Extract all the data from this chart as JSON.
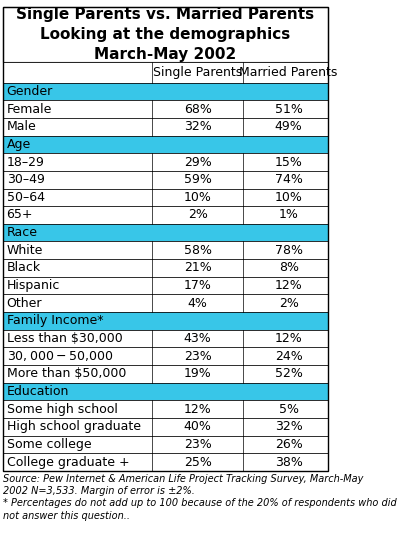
{
  "title": "Single Parents vs. Married Parents\nLooking at the demographics\nMarch-May 2002",
  "col_headers": [
    "",
    "Single Parents",
    "Married Parents"
  ],
  "header_bg": "#00BFFF",
  "section_bg": "#00BFFF",
  "row_bg_odd": "#FFFFFF",
  "row_bg_even": "#FFFFFF",
  "outer_border": "#000000",
  "sections": [
    {
      "name": "Gender",
      "rows": [
        [
          "Female",
          "68%",
          "51%"
        ],
        [
          "Male",
          "32%",
          "49%"
        ]
      ]
    },
    {
      "name": "Age",
      "rows": [
        [
          "18–29",
          "29%",
          "15%"
        ],
        [
          "30–49",
          "59%",
          "74%"
        ],
        [
          "50–64",
          "10%",
          "10%"
        ],
        [
          "65+",
          "2%",
          "1%"
        ]
      ]
    },
    {
      "name": "Race",
      "rows": [
        [
          "White",
          "58%",
          "78%"
        ],
        [
          "Black",
          "21%",
          "8%"
        ],
        [
          "Hispanic",
          "17%",
          "12%"
        ],
        [
          "Other",
          "4%",
          "2%"
        ]
      ]
    },
    {
      "name": "Family Income*",
      "rows": [
        [
          "Less than $30,000",
          "43%",
          "12%"
        ],
        [
          "$30,000-$50,000",
          "23%",
          "24%"
        ],
        [
          "More than $50,000",
          "19%",
          "52%"
        ]
      ]
    },
    {
      "name": "Education",
      "rows": [
        [
          "Some high school",
          "12%",
          "5%"
        ],
        [
          "High school graduate",
          "40%",
          "32%"
        ],
        [
          "Some college",
          "23%",
          "26%"
        ],
        [
          "College graduate +",
          "25%",
          "38%"
        ]
      ]
    }
  ],
  "footnote": "Source: Pew Internet & American Life Project Tracking Survey, March-May\n2002 N=3,533. Margin of error is ±2%.\n* Percentages do not add up to 100 because of the 20% of respondents who did\nnot answer this question..",
  "title_fontsize": 11,
  "header_fontsize": 9,
  "section_fontsize": 9,
  "data_fontsize": 9,
  "footnote_fontsize": 7
}
